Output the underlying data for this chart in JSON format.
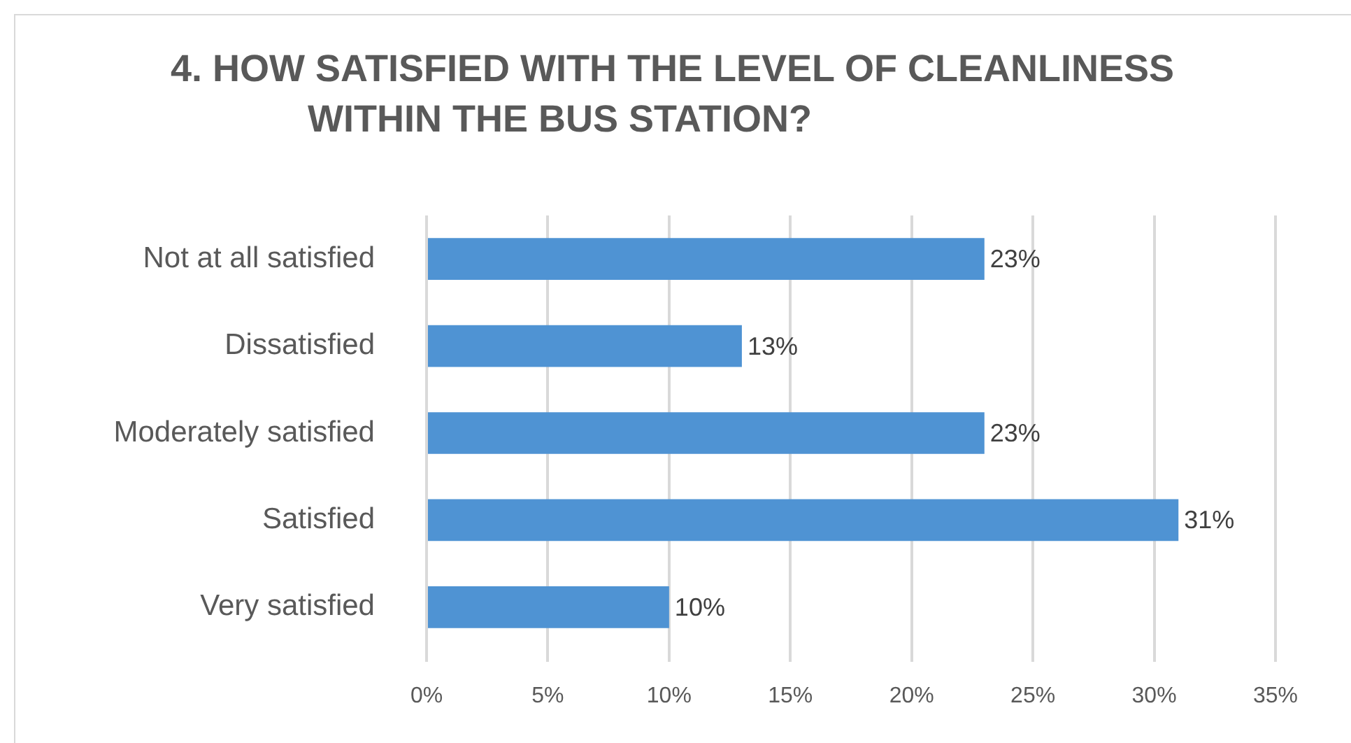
{
  "chart_data": {
    "type": "bar",
    "orientation": "horizontal",
    "title": "4. HOW SATISFIED WITH THE LEVEL OF CLEANLINESS WITHIN THE BUS STATION?",
    "categories": [
      "Not at all satisfied",
      "Dissatisfied",
      "Moderately satisfied",
      "Satisfied",
      "Very satisfied"
    ],
    "values": [
      23,
      13,
      23,
      31,
      10
    ],
    "value_labels": [
      "23%",
      "13%",
      "23%",
      "31%",
      "10%"
    ],
    "color": "#4f93d3",
    "xlim": [
      0,
      35
    ],
    "xticks": [
      {
        "value": 0,
        "label": "0%"
      },
      {
        "value": 5,
        "label": "5%"
      },
      {
        "value": 10,
        "label": "10%"
      },
      {
        "value": 15,
        "label": "15%"
      },
      {
        "value": 20,
        "label": "20%"
      },
      {
        "value": 25,
        "label": "25%"
      },
      {
        "value": 30,
        "label": "30%"
      },
      {
        "value": 35,
        "label": "35%"
      }
    ],
    "grid": "x"
  }
}
